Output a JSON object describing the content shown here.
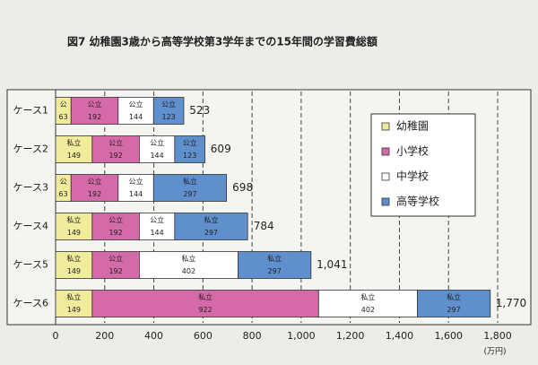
{
  "chart_data": {
    "type": "stacked-bar-horizontal",
    "title": "図7 幼稚園3歳から高等学校第3学年までの15年間の学習費総額",
    "categories": [
      "ケース1",
      "ケース2",
      "ケース3",
      "ケース4",
      "ケース5",
      "ケース6"
    ],
    "series": [
      {
        "name": "幼稚園",
        "color": "#f1ec9c",
        "kinds": [
          "公",
          "私立",
          "公",
          "私立",
          "私立",
          "私立"
        ],
        "values": [
          63,
          149,
          63,
          149,
          149,
          149
        ]
      },
      {
        "name": "小学校",
        "color": "#d56aa8",
        "kinds": [
          "公立",
          "公立",
          "公立",
          "公立",
          "公立",
          "私立"
        ],
        "values": [
          192,
          192,
          192,
          192,
          192,
          922
        ]
      },
      {
        "name": "中学校",
        "color": "#ffffff",
        "kinds": [
          "公立",
          "公立",
          "公立",
          "公立",
          "私立",
          "私立"
        ],
        "values": [
          144,
          144,
          144,
          144,
          402,
          402
        ]
      },
      {
        "name": "高等学校",
        "color": "#5f8fcc",
        "kinds": [
          "公立",
          "公立",
          "私立",
          "私立",
          "私立",
          "私立"
        ],
        "values": [
          123,
          123,
          297,
          297,
          297,
          297
        ]
      }
    ],
    "totals": {
      "values": [
        523,
        609,
        698,
        784,
        1041,
        1770
      ],
      "value_labels": [
        "523",
        "609",
        "698",
        "784",
        "1,041",
        "1,770"
      ]
    },
    "xlim": [
      0,
      1800
    ],
    "xticks": [
      0,
      200,
      400,
      600,
      800,
      {
        "value": 1000,
        "label": "1,000"
      },
      {
        "value": 1200,
        "label": "1,200"
      },
      {
        "value": 1400,
        "label": "1,400"
      },
      {
        "value": 1600,
        "label": "1,600"
      },
      {
        "value": 1800,
        "label": "1,800"
      }
    ],
    "x_unit": "(万円)",
    "grid": true,
    "legend": "upper right"
  }
}
